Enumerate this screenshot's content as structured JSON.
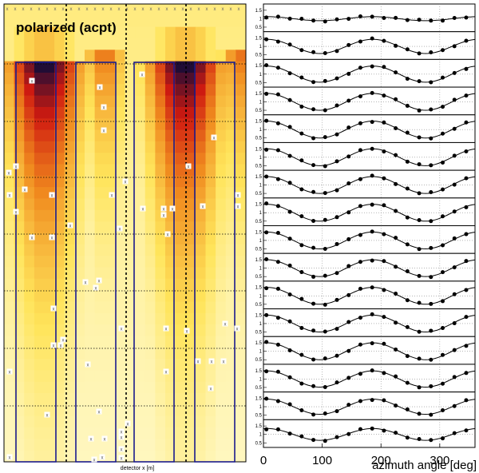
{
  "heatmap": {
    "title": "polarized (acpt)",
    "xlabel": "detector x [m]",
    "colors": {
      "low": "#fffde0",
      "mid_low": "#ffe45a",
      "mid": "#f08a1e",
      "mid_high": "#d01a10",
      "high": "#0a0a3a",
      "frame_blue": "#1a1a8c"
    }
  },
  "chart_data": [
    {
      "type": "heatmap",
      "title": "polarized (acpt)",
      "xlabel": "detector x [m]",
      "ylabel": "",
      "grid": false,
      "legend": "none",
      "description_rows": 40,
      "description_cols": 24,
      "hotspots": [
        {
          "col": 4,
          "row": 6,
          "intensity": 1.0
        },
        {
          "col": 18,
          "row": 6,
          "intensity": 1.0
        }
      ]
    },
    {
      "type": "line",
      "subpanels": 16,
      "xlabel": "azimuth angle [deg]",
      "xlim": [
        0,
        360
      ],
      "xticks": [
        "0",
        "100",
        "200",
        "300"
      ],
      "ylim": [
        0.3,
        1.8
      ],
      "yticks": [
        "0.5",
        "1",
        "1.5"
      ],
      "x": [
        5,
        25,
        45,
        65,
        85,
        105,
        125,
        145,
        165,
        185,
        205,
        225,
        245,
        265,
        285,
        305,
        325,
        345
      ],
      "series_amplitudes": [
        0.12,
        0.42,
        0.48,
        0.5,
        0.5,
        0.5,
        0.5,
        0.5,
        0.5,
        0.5,
        0.5,
        0.5,
        0.5,
        0.48,
        0.45,
        0.35
      ],
      "model": "1 + A*cos(2*phi)"
    }
  ]
}
